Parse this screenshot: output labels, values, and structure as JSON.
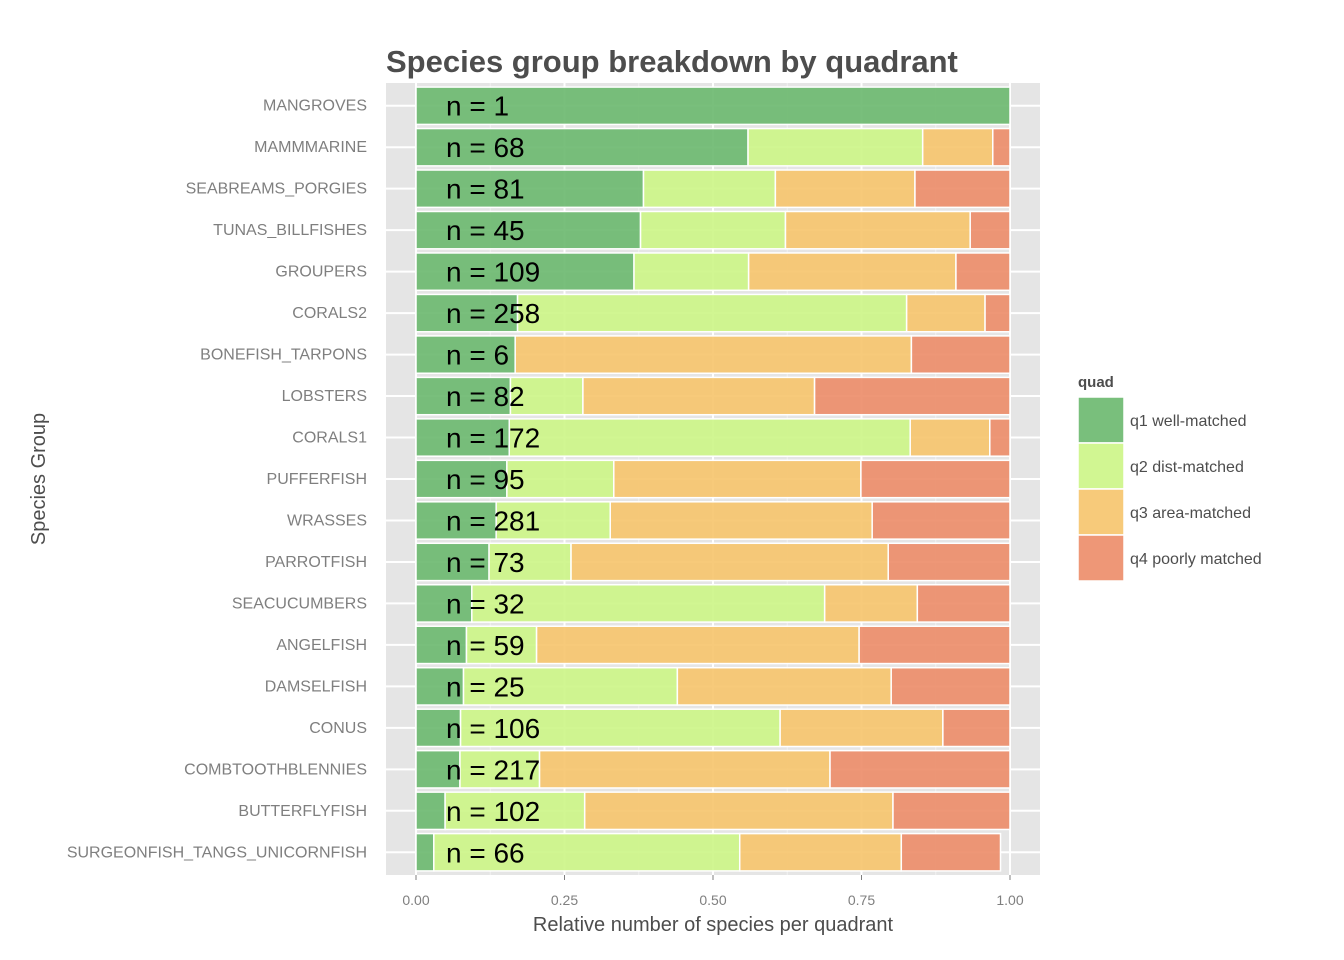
{
  "chart_data": {
    "type": "bar",
    "orientation": "horizontal",
    "stacked": true,
    "title": "Species group breakdown by quadrant",
    "xlabel": "Relative number of species per quadrant",
    "ylabel": "Species Group",
    "xlim": [
      0,
      1
    ],
    "xticks": [
      "0.00",
      "0.25",
      "0.50",
      "0.75",
      "1.00"
    ],
    "grid": true,
    "legend_position": "right",
    "legend_title": "quad",
    "categories": [
      "MANGROVES",
      "MAMMMARINE",
      "SEABREAMS_PORGIES",
      "TUNAS_BILLFISHES",
      "GROUPERS",
      "CORALS2",
      "BONEFISH_TARPONS",
      "LOBSTERS",
      "CORALS1",
      "PUFFERFISH",
      "WRASSES",
      "PARROTFISH",
      "SEACUCUMBERS",
      "ANGELFISH",
      "DAMSELFISH",
      "CONUS",
      "COMBTOOTHBLENNIES",
      "BUTTERFLYFISH",
      "SURGEONFISH_TANGS_UNICORNFISH"
    ],
    "n_labels": [
      "n = 1",
      "n = 68",
      "n = 81",
      "n = 45",
      "n = 109",
      "n = 258",
      "n = 6",
      "n = 82",
      "n = 172",
      "n = 95",
      "n = 281",
      "n = 73",
      "n = 32",
      "n = 59",
      "n = 25",
      "n = 106",
      "n = 217",
      "n = 102",
      "n = 66"
    ],
    "series": [
      {
        "name": "q1 well-matched",
        "color": "#6ab86e",
        "values": [
          1.0,
          0.559,
          0.383,
          0.378,
          0.367,
          0.171,
          0.167,
          0.159,
          0.157,
          0.153,
          0.135,
          0.123,
          0.094,
          0.085,
          0.08,
          0.075,
          0.074,
          0.049,
          0.03
        ]
      },
      {
        "name": "q2 dist-matched",
        "color": "#ccf586",
        "values": [
          0.0,
          0.294,
          0.222,
          0.244,
          0.193,
          0.655,
          0.0,
          0.122,
          0.675,
          0.18,
          0.192,
          0.138,
          0.594,
          0.118,
          0.36,
          0.538,
          0.134,
          0.235,
          0.515
        ]
      },
      {
        "name": "q3 area-matched",
        "color": "#f6c46c",
        "values": [
          0.0,
          0.118,
          0.235,
          0.311,
          0.349,
          0.132,
          0.667,
          0.39,
          0.134,
          0.416,
          0.441,
          0.534,
          0.156,
          0.543,
          0.36,
          0.274,
          0.489,
          0.519,
          0.272
        ]
      },
      {
        "name": "q4 poorly matched",
        "color": "#ec8c68",
        "values": [
          0.0,
          0.029,
          0.16,
          0.067,
          0.091,
          0.042,
          0.166,
          0.329,
          0.034,
          0.251,
          0.232,
          0.205,
          0.156,
          0.254,
          0.2,
          0.113,
          0.303,
          0.197,
          0.167
        ]
      }
    ]
  }
}
